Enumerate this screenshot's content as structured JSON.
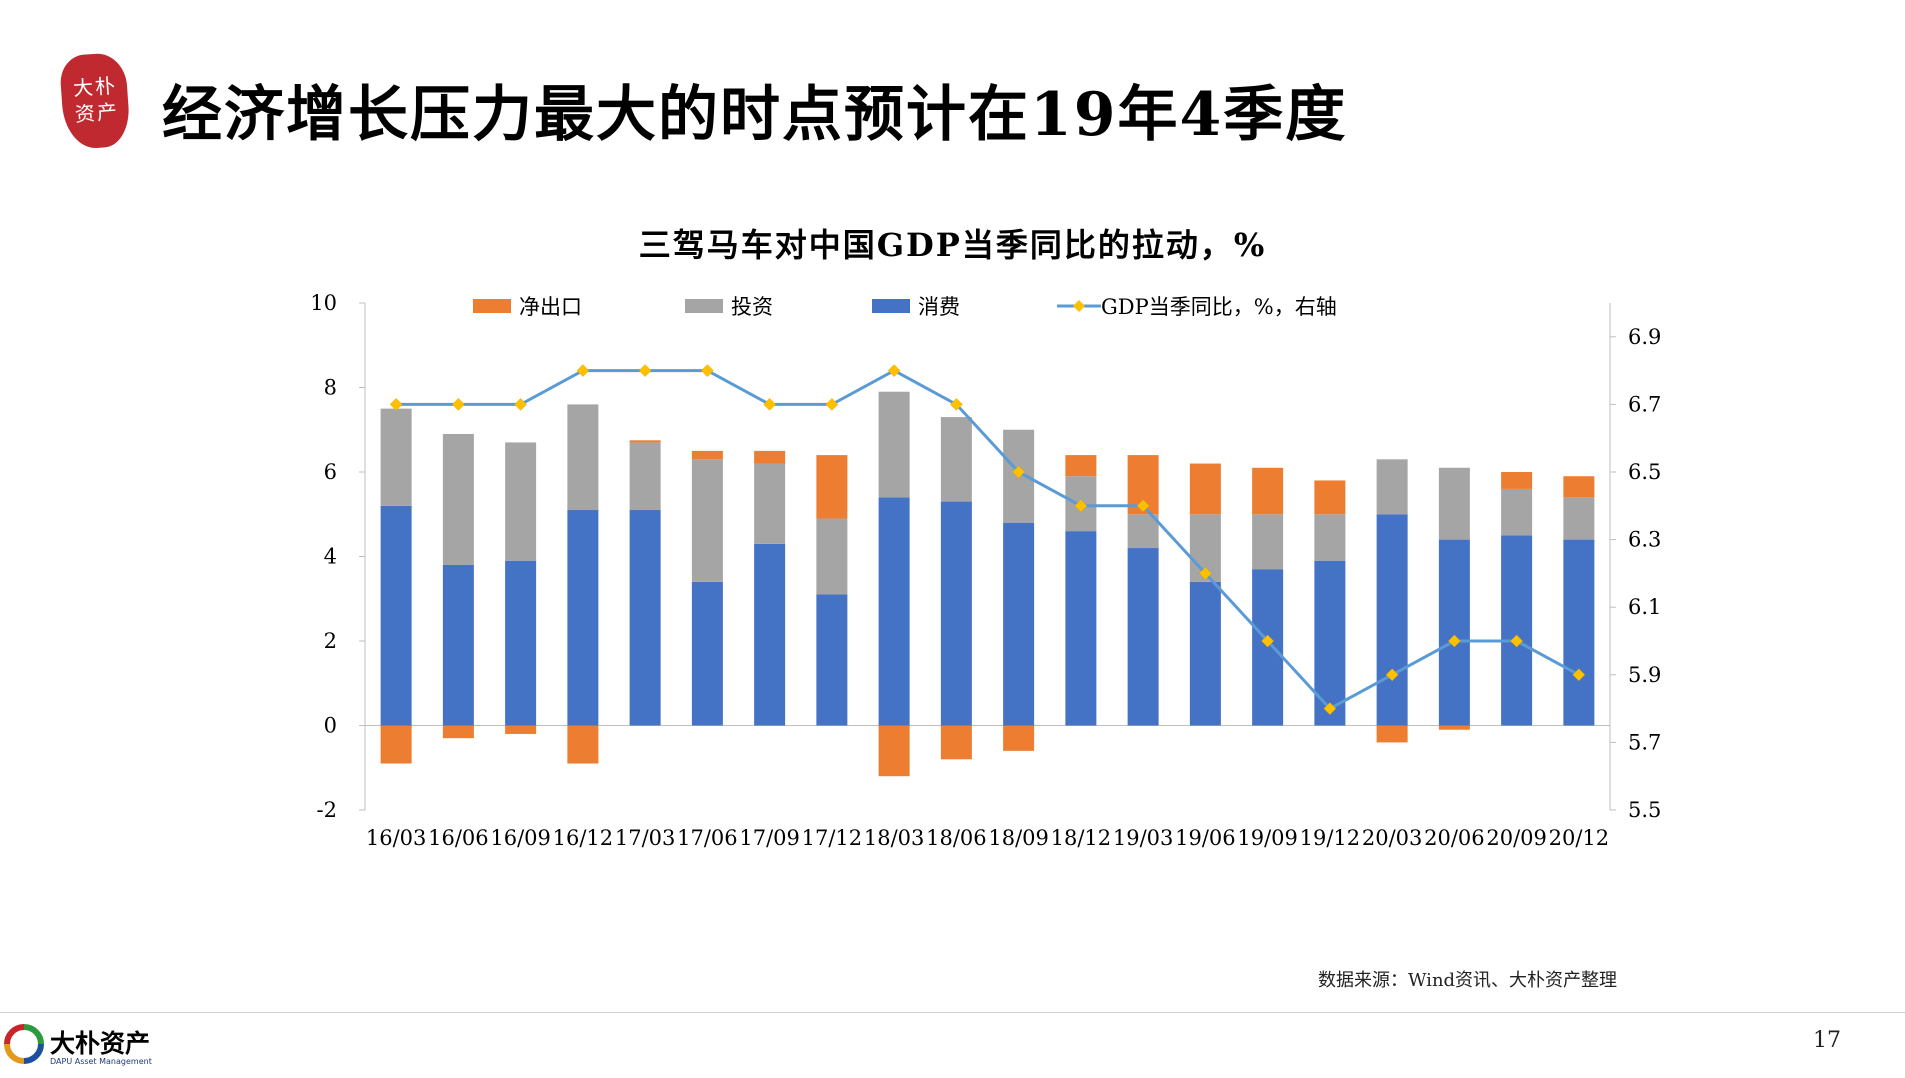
{
  "header": {
    "seal_text": "大朴资产",
    "title": "经济增长压力最大的时点预计在19年4季度"
  },
  "chart_data": {
    "type": "bar",
    "title": "三驾马车对中国GDP当季同比的拉动，%",
    "categories": [
      "16/03",
      "16/06",
      "16/09",
      "16/12",
      "17/03",
      "17/06",
      "17/09",
      "17/12",
      "18/03",
      "18/06",
      "18/09",
      "18/12",
      "19/03",
      "19/06",
      "19/09",
      "19/12",
      "20/03",
      "20/06",
      "20/09",
      "20/12"
    ],
    "stacked": true,
    "series": [
      {
        "name": "净出口",
        "color": "#ED7D31",
        "axis": "left",
        "values": [
          -0.9,
          -0.3,
          -0.2,
          -0.9,
          0.05,
          0.2,
          0.3,
          1.5,
          -1.2,
          -0.8,
          -0.6,
          0.5,
          1.4,
          1.2,
          1.1,
          0.8,
          -0.4,
          -0.1,
          0.4,
          0.5
        ]
      },
      {
        "name": "投资",
        "color": "#A5A5A5",
        "axis": "left",
        "values": [
          2.3,
          3.1,
          2.8,
          2.5,
          1.6,
          2.9,
          1.9,
          1.8,
          2.5,
          2.0,
          2.2,
          1.3,
          0.8,
          1.6,
          1.3,
          1.1,
          1.3,
          1.7,
          1.1,
          1.0
        ]
      },
      {
        "name": "消费",
        "color": "#4472C4",
        "axis": "left",
        "values": [
          5.2,
          3.8,
          3.9,
          5.1,
          5.1,
          3.4,
          4.3,
          3.1,
          5.4,
          5.3,
          4.8,
          4.6,
          4.2,
          3.4,
          3.7,
          3.9,
          5.0,
          4.4,
          4.5,
          4.4
        ]
      },
      {
        "name": "GDP当季同比，%，右轴",
        "type": "line",
        "color": "#5B9BD5",
        "marker_color": "#FFC000",
        "axis": "right",
        "values": [
          6.7,
          6.7,
          6.7,
          6.8,
          6.8,
          6.8,
          6.7,
          6.7,
          6.8,
          6.7,
          6.5,
          6.4,
          6.4,
          6.2,
          6.0,
          5.8,
          5.9,
          6.0,
          6.0,
          5.9
        ]
      }
    ],
    "y_left": {
      "range": [
        -2,
        10
      ],
      "ticks": [
        "-2",
        "0",
        "2",
        "4",
        "6",
        "8",
        "10"
      ]
    },
    "y_right": {
      "range": [
        5.5,
        7.0
      ],
      "ticks": [
        "5.5",
        "5.7",
        "5.9",
        "6.1",
        "6.3",
        "6.5",
        "6.7",
        "6.9"
      ]
    },
    "legend_position": "top",
    "grid": false
  },
  "source": "数据来源：Wind资讯、大朴资产整理",
  "footer": {
    "logo_cn": "大朴资产",
    "logo_en": "DAPU Asset Management",
    "page_number": "17"
  }
}
